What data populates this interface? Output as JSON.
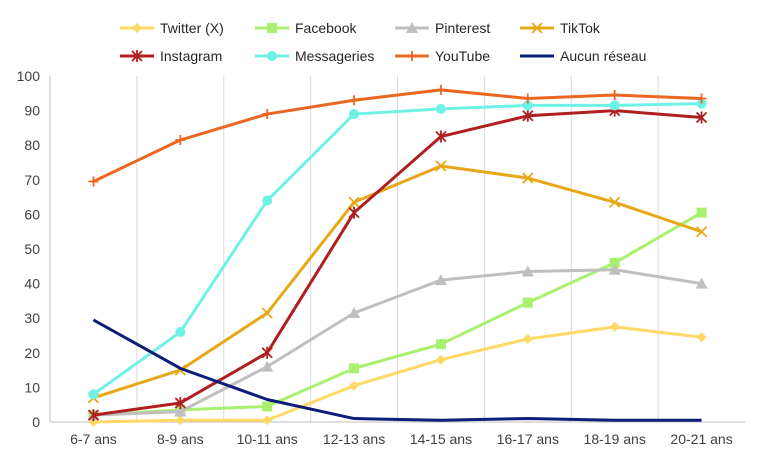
{
  "chart_data": {
    "type": "line",
    "categories": [
      "6-7 ans",
      "8-9 ans",
      "10-11 ans",
      "12-13 ans",
      "14-15 ans",
      "16-17 ans",
      "18-19 ans",
      "20-21 ans"
    ],
    "ylim": [
      0,
      100
    ],
    "yticks": [
      0,
      10,
      20,
      30,
      40,
      50,
      60,
      70,
      80,
      90,
      100
    ],
    "grid": "vertical",
    "legend_position": "top",
    "series": [
      {
        "name": "Twitter (X)",
        "color": "#FFD966",
        "marker": "diamond",
        "values": [
          0,
          0.5,
          0.5,
          10.5,
          18,
          24,
          27.5,
          24.5
        ]
      },
      {
        "name": "Facebook",
        "color": "#A9F06F",
        "marker": "square",
        "values": [
          2,
          3.5,
          4.5,
          15.5,
          22.5,
          34.5,
          46,
          60.5
        ]
      },
      {
        "name": "Pinterest",
        "color": "#BFBFBF",
        "marker": "triangle",
        "values": [
          2,
          3,
          16,
          31.5,
          41,
          43.5,
          44,
          40
        ]
      },
      {
        "name": "TikTok",
        "color": "#E6A817",
        "marker": "x",
        "values": [
          7,
          15,
          31.5,
          63.5,
          74,
          70.5,
          63.5,
          55
        ]
      },
      {
        "name": "Instagram",
        "color": "#B01F1F",
        "marker": "star",
        "values": [
          2,
          5.5,
          20,
          60.5,
          82.5,
          88.5,
          90,
          88
        ]
      },
      {
        "name": "Messageries",
        "color": "#6FF2E6",
        "marker": "circle",
        "values": [
          8,
          26,
          64,
          89,
          90.5,
          91.5,
          91.5,
          92
        ]
      },
      {
        "name": "YouTube",
        "color": "#EB6620",
        "marker": "plus",
        "values": [
          69.5,
          81.5,
          89,
          93,
          96,
          93.5,
          94.5,
          93.5
        ]
      },
      {
        "name": "Aucun réseau",
        "color": "#0B1E7A",
        "marker": "none",
        "values": [
          29.5,
          15.5,
          6.5,
          1,
          0.5,
          1,
          0.5,
          0.5
        ]
      }
    ]
  }
}
